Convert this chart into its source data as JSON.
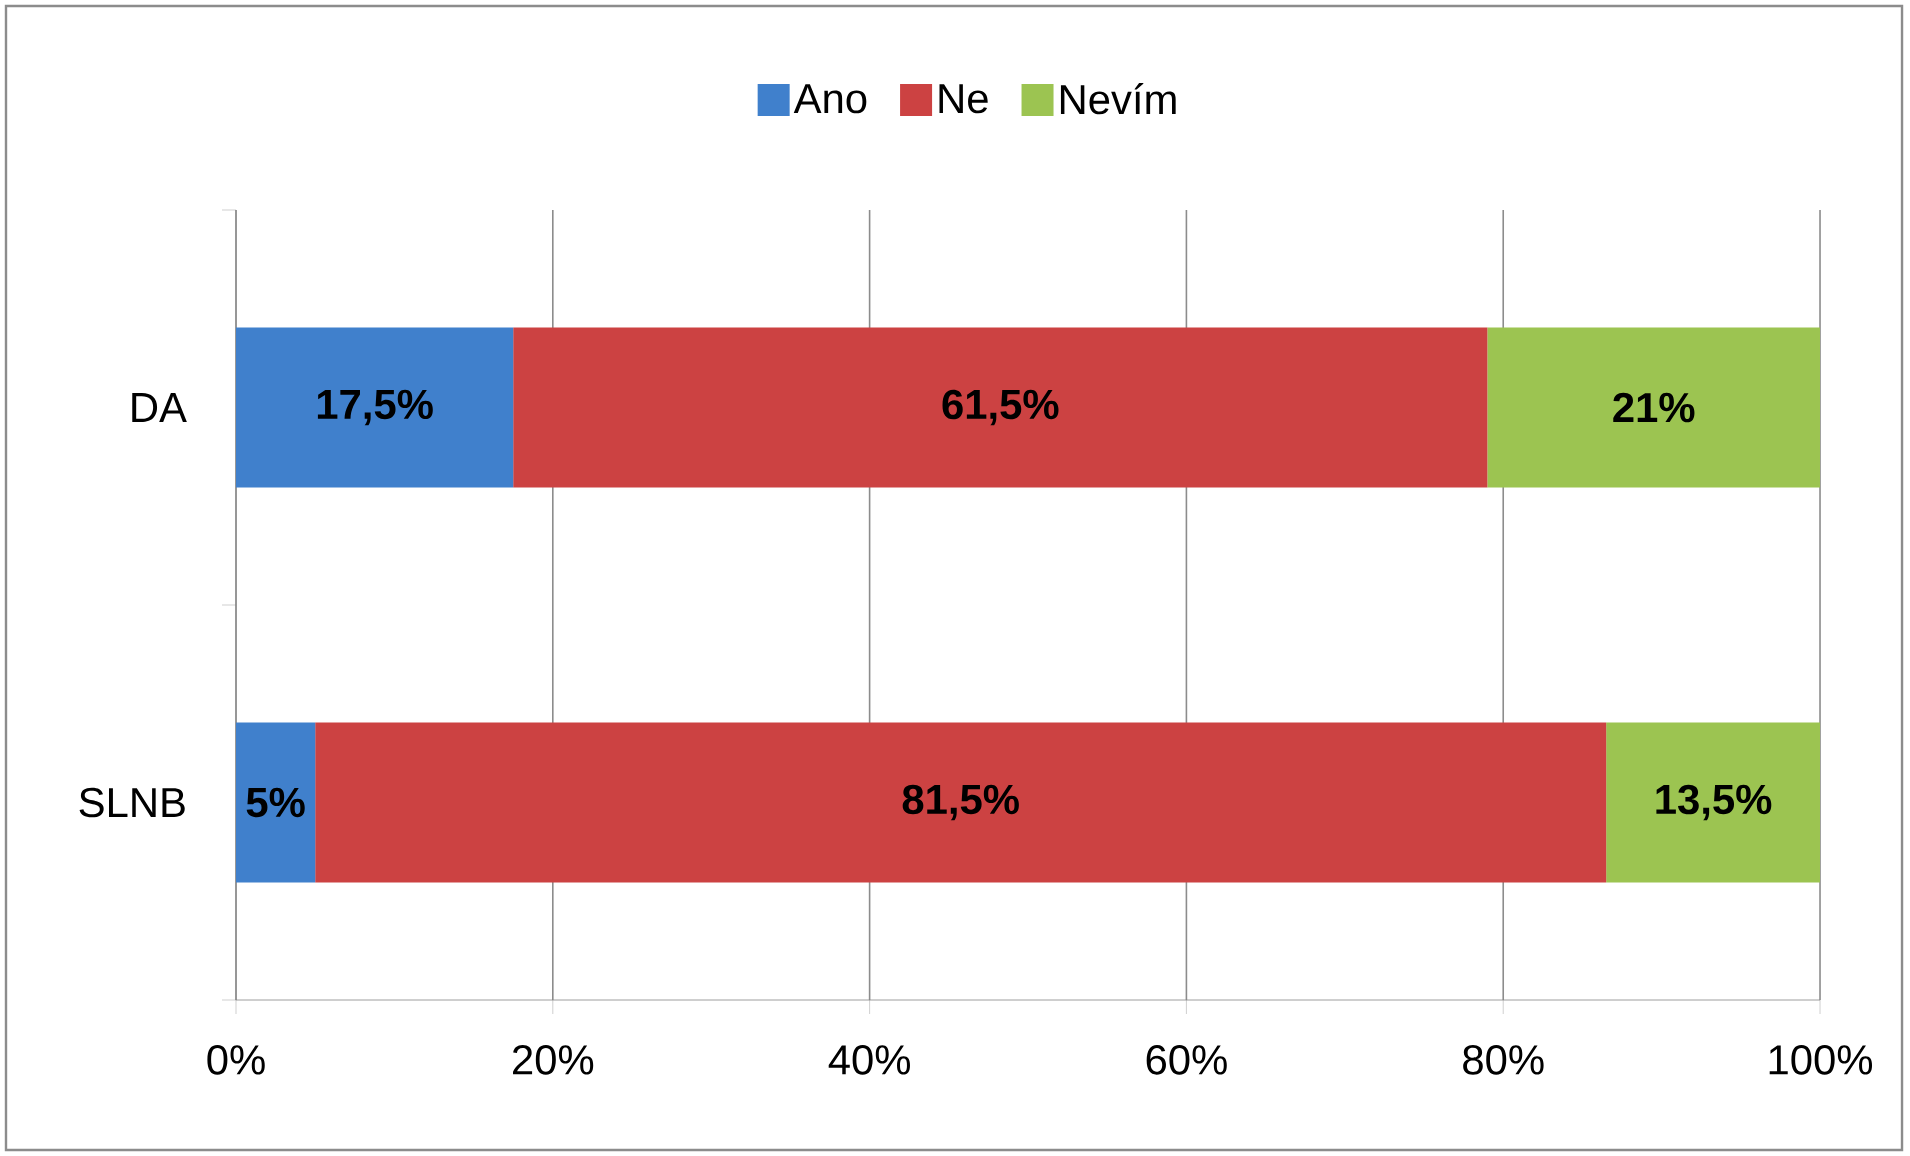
{
  "chart_data": {
    "type": "bar",
    "orientation": "horizontal",
    "stacked": true,
    "categories": [
      "DA",
      "SLNB"
    ],
    "series": [
      {
        "name": "Ano",
        "color": "#4080cc",
        "values": [
          17.5,
          5
        ],
        "value_labels": [
          "17,5%",
          "5%"
        ]
      },
      {
        "name": "Ne",
        "color": "#cc4242",
        "values": [
          61.5,
          81.5
        ],
        "value_labels": [
          "61,5%",
          "81,5%"
        ]
      },
      {
        "name": "Nevím",
        "color": "#9cc451",
        "values": [
          21,
          13.5
        ],
        "value_labels": [
          "21%",
          "13,5%"
        ]
      }
    ],
    "xlim": [
      0,
      100
    ],
    "xticks": [
      {
        "value": 0,
        "label": "0%"
      },
      {
        "value": 20,
        "label": "20%"
      },
      {
        "value": 40,
        "label": "40%"
      },
      {
        "value": 60,
        "label": "60%"
      },
      {
        "value": 80,
        "label": "80%"
      },
      {
        "value": 100,
        "label": "100%"
      }
    ],
    "grid": "x",
    "legend": "top"
  }
}
